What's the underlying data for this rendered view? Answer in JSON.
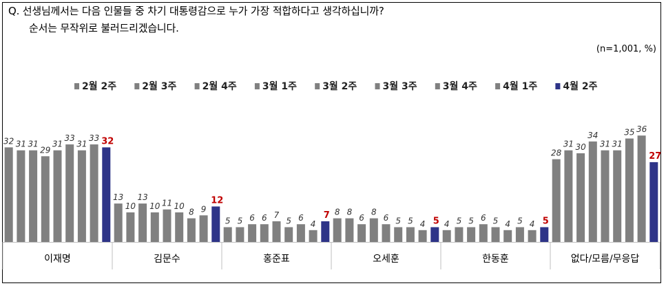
{
  "question": {
    "line1": "Q. 선생님께서는 다음 인물들 중 차기 대통령감으로 누가 가장 적합하다고 생각하십니까?",
    "line2": "순서는 무작위로 불러드리겠습니다."
  },
  "note": "(n=1,001, %)",
  "colors": {
    "gray": "#808080",
    "navy": "#2e3488",
    "red_label": "#c00000"
  },
  "chart_data": {
    "type": "bar",
    "legend_position": "top",
    "series_names": [
      "2월 2주",
      "2월 3주",
      "2월 4주",
      "3월 1주",
      "3월 2주",
      "3월 3주",
      "3월 4주",
      "4월 1주",
      "4월 2주"
    ],
    "categories": [
      "이재명",
      "김문수",
      "홍준표",
      "오세훈",
      "한동훈",
      "없다/모름/무응답"
    ],
    "values": [
      [
        32,
        31,
        31,
        29,
        31,
        33,
        31,
        33,
        32
      ],
      [
        13,
        10,
        13,
        10,
        11,
        10,
        8,
        9,
        12
      ],
      [
        5,
        5,
        6,
        6,
        7,
        5,
        6,
        4,
        7
      ],
      [
        8,
        8,
        6,
        8,
        6,
        5,
        5,
        4,
        5
      ],
      [
        4,
        5,
        5,
        6,
        5,
        4,
        5,
        4,
        5
      ],
      [
        28,
        31,
        30,
        34,
        31,
        31,
        35,
        36,
        27
      ]
    ],
    "ylim": [
      0,
      40
    ]
  }
}
